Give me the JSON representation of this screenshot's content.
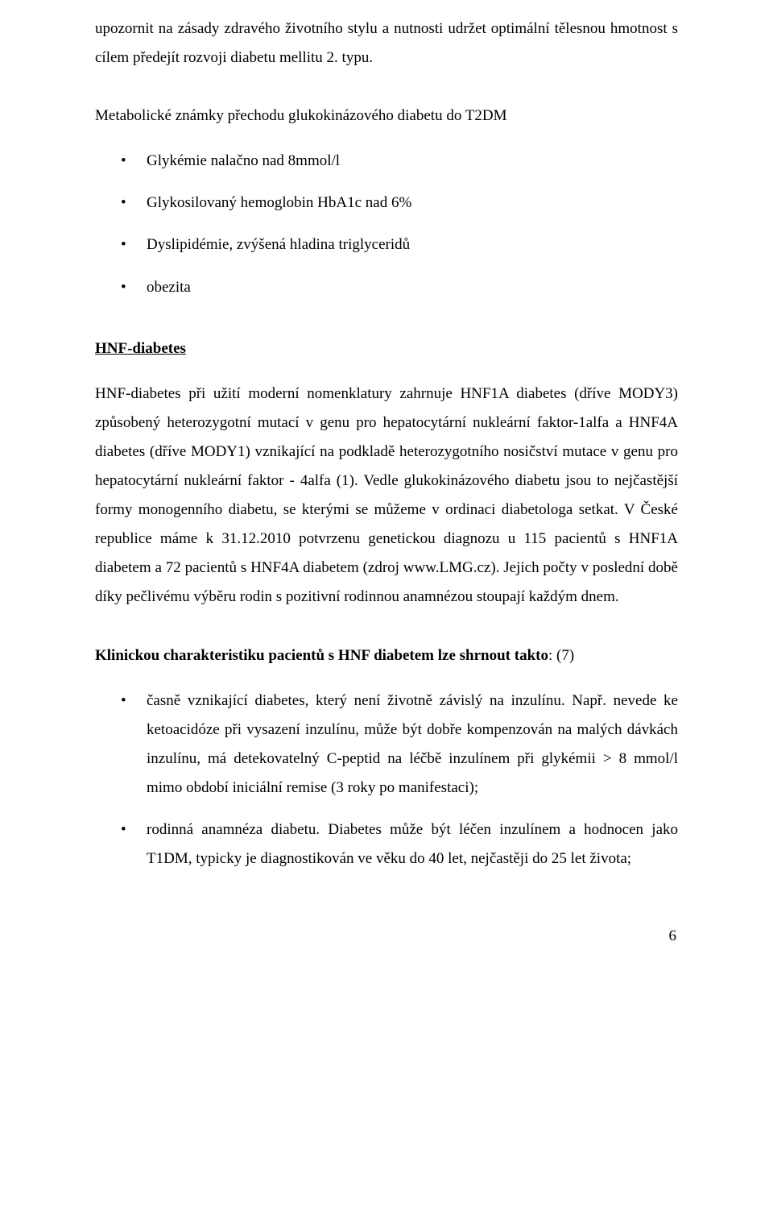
{
  "intro_paragraph": "upozornit na zásady zdravého životního stylu a nutnosti udržet optimální tělesnou hmotnost s cílem předejít rozvoji diabetu mellitu 2. typu.",
  "section1": {
    "heading": "Metabolické známky přechodu glukokinázového diabetu do T2DM",
    "items": [
      "Glykémie nalačno nad 8mmol/l",
      "Glykosilovaný hemoglobin HbA1c nad 6%",
      "Dyslipidémie, zvýšená hladina triglyceridů",
      "obezita"
    ]
  },
  "hnf_heading": "HNF-diabetes",
  "hnf_paragraph": "HNF-diabetes při užití moderní nomenklatury zahrnuje HNF1A diabetes (dříve MODY3) způsobený heterozygotní mutací v genu pro hepatocytární nukleární faktor-1alfa a HNF4A diabetes (dříve MODY1) vznikající na podkladě heterozygotního nosičství mutace v genu pro hepatocytární nukleární faktor - 4alfa (1). Vedle glukokinázového diabetu jsou to nejčastější formy monogenního diabetu, se kterými se můžeme v ordinaci diabetologa setkat. V České republice máme k 31.12.2010 potvrzenu genetickou diagnozu u 115 pacientů s HNF1A diabetem a 72 pacientů s HNF4A diabetem (zdroj www.LMG.cz). Jejich počty v poslední době díky pečlivému výběru rodin s pozitivní rodinnou anamnézou stoupají každým dnem.",
  "clinical_heading": "Klinickou charakteristiku pacientů s HNF diabetem lze shrnout takto",
  "clinical_heading_suffix": ": (7)",
  "clinical_items": [
    "časně vznikající diabetes, který není životně závislý na inzulínu. Např. nevede ke ketoacidóze při vysazení inzulínu, může být dobře kompenzován na malých dávkách inzulínu, má detekovatelný C-peptid na léčbě inzulínem při glykémii > 8 mmol/l mimo období iniciální remise (3 roky po manifestaci);",
    "rodinná anamnéza diabetu. Diabetes může být léčen inzulínem a hodnocen jako T1DM, typicky je diagnostikován ve věku do 40 let, nejčastěji do 25 let života;"
  ],
  "page_number": "6"
}
